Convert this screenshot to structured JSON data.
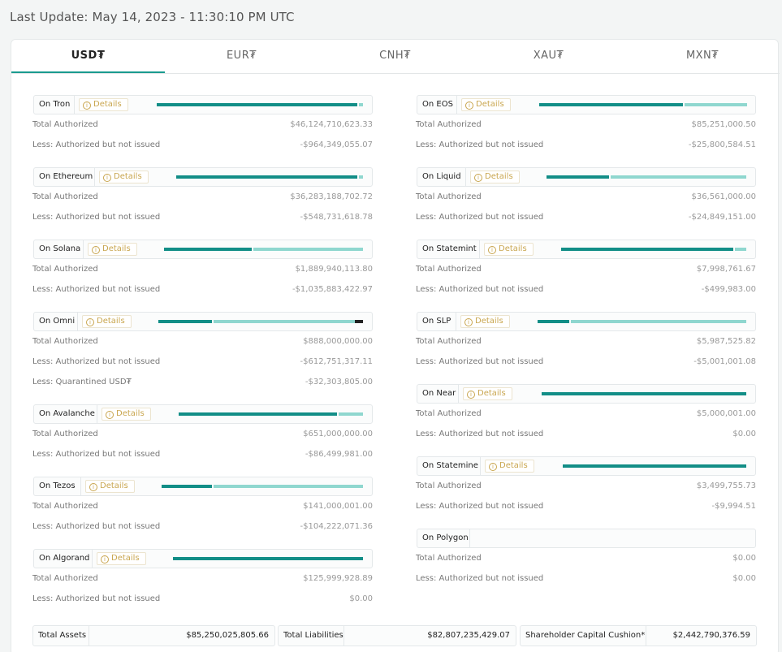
{
  "last_update": "Last Update: May 14, 2023 - 11:30:10 PM UTC",
  "tabs": [
    {
      "label": "USD₮",
      "active": true
    },
    {
      "label": "EUR₮",
      "active": false
    },
    {
      "label": "CNH₮",
      "active": false
    },
    {
      "label": "XAU₮",
      "active": false
    },
    {
      "label": "MXN₮",
      "active": false
    }
  ],
  "details_label": "Details",
  "colors": {
    "authorized": "#128e87",
    "not_issued": "#8fd7cf",
    "quarantined": "#222222",
    "accent": "#1a9b8f",
    "details": "#c9a64f"
  },
  "left_chains": [
    {
      "name": "On Tron",
      "has_details": true,
      "bar": {
        "issued_fraction": 0.98,
        "not_issued_fraction": 0.02
      },
      "rows": [
        {
          "label": "Total Authorized",
          "value": "$46,124,710,623.33"
        },
        {
          "label": "Less: Authorized but not issued",
          "value": "-$964,349,055.07"
        }
      ]
    },
    {
      "name": "On Ethereum",
      "has_details": true,
      "bar": {
        "issued_fraction": 0.98,
        "not_issued_fraction": 0.02
      },
      "rows": [
        {
          "label": "Total Authorized",
          "value": "$36,283,188,702.72"
        },
        {
          "label": "Less: Authorized but not issued",
          "value": "-$548,731,618.78"
        }
      ]
    },
    {
      "name": "On Solana",
      "has_details": true,
      "bar": {
        "issued_fraction": 0.45,
        "not_issued_fraction": 0.55
      },
      "rows": [
        {
          "label": "Total Authorized",
          "value": "$1,889,940,113.80"
        },
        {
          "label": "Less: Authorized but not issued",
          "value": "-$1,035,883,422.97"
        }
      ]
    },
    {
      "name": "On Omni",
      "has_details": true,
      "bar": {
        "issued_fraction": 0.27,
        "not_issued_fraction": 0.69,
        "quarantined_fraction": 0.04
      },
      "rows": [
        {
          "label": "Total Authorized",
          "value": "$888,000,000.00"
        },
        {
          "label": "Less: Authorized but not issued",
          "value": "-$612,751,317.11"
        },
        {
          "label": "Less: Quarantined USD₮",
          "value": "-$32,303,805.00"
        }
      ]
    },
    {
      "name": "On Avalanche",
      "has_details": true,
      "bar": {
        "issued_fraction": 0.87,
        "not_issued_fraction": 0.13
      },
      "rows": [
        {
          "label": "Total Authorized",
          "value": "$651,000,000.00"
        },
        {
          "label": "Less: Authorized but not issued",
          "value": "-$86,499,981.00"
        }
      ]
    },
    {
      "name": "On Tezos",
      "has_details": true,
      "bar": {
        "issued_fraction": 0.26,
        "not_issued_fraction": 0.74
      },
      "rows": [
        {
          "label": "Total Authorized",
          "value": "$141,000,001.00"
        },
        {
          "label": "Less: Authorized but not issued",
          "value": "-$104,222,071.36"
        }
      ]
    },
    {
      "name": "On Algorand",
      "has_details": true,
      "bar": {
        "issued_fraction": 1.0,
        "not_issued_fraction": 0.0
      },
      "rows": [
        {
          "label": "Total Authorized",
          "value": "$125,999,928.89"
        },
        {
          "label": "Less: Authorized but not issued",
          "value": "$0.00"
        }
      ]
    }
  ],
  "right_chains": [
    {
      "name": "On EOS",
      "has_details": true,
      "bar": {
        "issued_fraction": 0.7,
        "not_issued_fraction": 0.3
      },
      "rows": [
        {
          "label": "Total Authorized",
          "value": "$85,251,000.50"
        },
        {
          "label": "Less: Authorized but not issued",
          "value": "-$25,800,584.51"
        }
      ]
    },
    {
      "name": "On Liquid",
      "has_details": true,
      "bar": {
        "issued_fraction": 0.32,
        "not_issued_fraction": 0.68
      },
      "rows": [
        {
          "label": "Total Authorized",
          "value": "$36,561,000.00"
        },
        {
          "label": "Less: Authorized but not issued",
          "value": "-$24,849,151.00"
        }
      ]
    },
    {
      "name": "On Statemint",
      "has_details": true,
      "bar": {
        "issued_fraction": 0.94,
        "not_issued_fraction": 0.06
      },
      "rows": [
        {
          "label": "Total Authorized",
          "value": "$7,998,761.67"
        },
        {
          "label": "Less: Authorized but not issued",
          "value": "-$499,983.00"
        }
      ]
    },
    {
      "name": "On SLP",
      "has_details": true,
      "bar": {
        "issued_fraction": 0.16,
        "not_issued_fraction": 0.84
      },
      "rows": [
        {
          "label": "Total Authorized",
          "value": "$5,987,525.82"
        },
        {
          "label": "Less: Authorized but not issued",
          "value": "-$5,001,001.08"
        }
      ]
    },
    {
      "name": "On Near",
      "has_details": true,
      "bar": {
        "issued_fraction": 1.0,
        "not_issued_fraction": 0.0
      },
      "rows": [
        {
          "label": "Total Authorized",
          "value": "$5,000,001.00"
        },
        {
          "label": "Less: Authorized but not issued",
          "value": "$0.00"
        }
      ]
    },
    {
      "name": "On Statemine",
      "has_details": true,
      "bar": {
        "issued_fraction": 1.0,
        "not_issued_fraction": 0.0
      },
      "rows": [
        {
          "label": "Total Authorized",
          "value": "$3,499,755.73"
        },
        {
          "label": "Less: Authorized but not issued",
          "value": "-$9,994.51"
        }
      ]
    },
    {
      "name": "On Polygon",
      "has_details": false,
      "bar": null,
      "rows": [
        {
          "label": "Total Authorized",
          "value": "$0.00"
        },
        {
          "label": "Less: Authorized but not issued",
          "value": "$0.00"
        }
      ]
    }
  ],
  "totals": [
    {
      "label": "Total Assets",
      "value": "$85,250,025,805.66"
    },
    {
      "label": "Total Liabilities",
      "value": "$82,807,235,429.07"
    },
    {
      "label": "Shareholder Capital Cushion*",
      "value": "$2,442,790,376.59"
    }
  ]
}
